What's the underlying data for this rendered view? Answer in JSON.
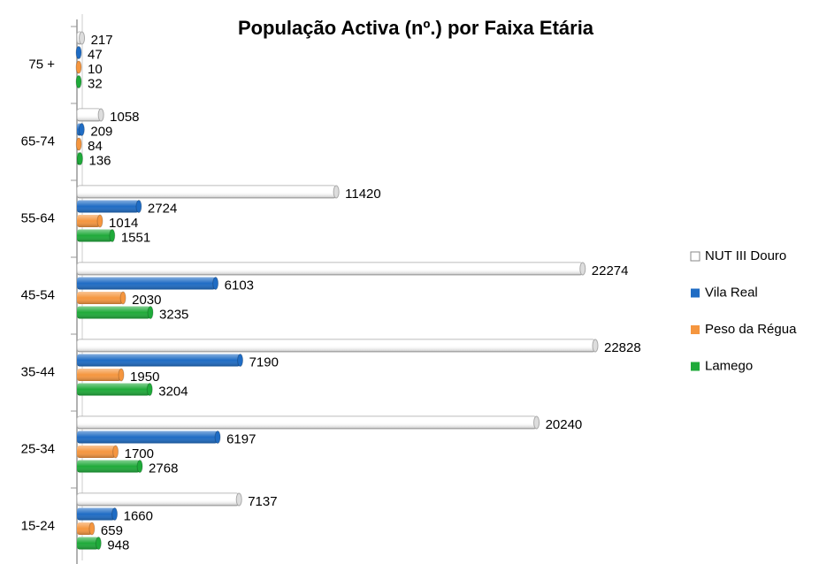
{
  "chart_data": {
    "type": "bar",
    "orientation": "horizontal",
    "title": "População Activa (nº.) por Faixa Etária",
    "categories": [
      "75 +",
      "65-74",
      "55-64",
      "45-54",
      "35-44",
      "25-34",
      "15-24"
    ],
    "series": [
      {
        "name": "NUT III Douro",
        "color": "#ffffff",
        "values": [
          217,
          1058,
          11420,
          22274,
          22828,
          20240,
          7137
        ]
      },
      {
        "name": "Vila Real",
        "color": "#1f6cc4",
        "values": [
          47,
          209,
          2724,
          6103,
          7190,
          6197,
          1660
        ]
      },
      {
        "name": "Peso da Régua",
        "color": "#f5963f",
        "values": [
          10,
          84,
          1014,
          2030,
          1950,
          1700,
          659
        ]
      },
      {
        "name": "Lamego",
        "color": "#1faa3a",
        "values": [
          32,
          136,
          1551,
          3235,
          3204,
          2768,
          948
        ]
      }
    ],
    "legend": "right"
  }
}
